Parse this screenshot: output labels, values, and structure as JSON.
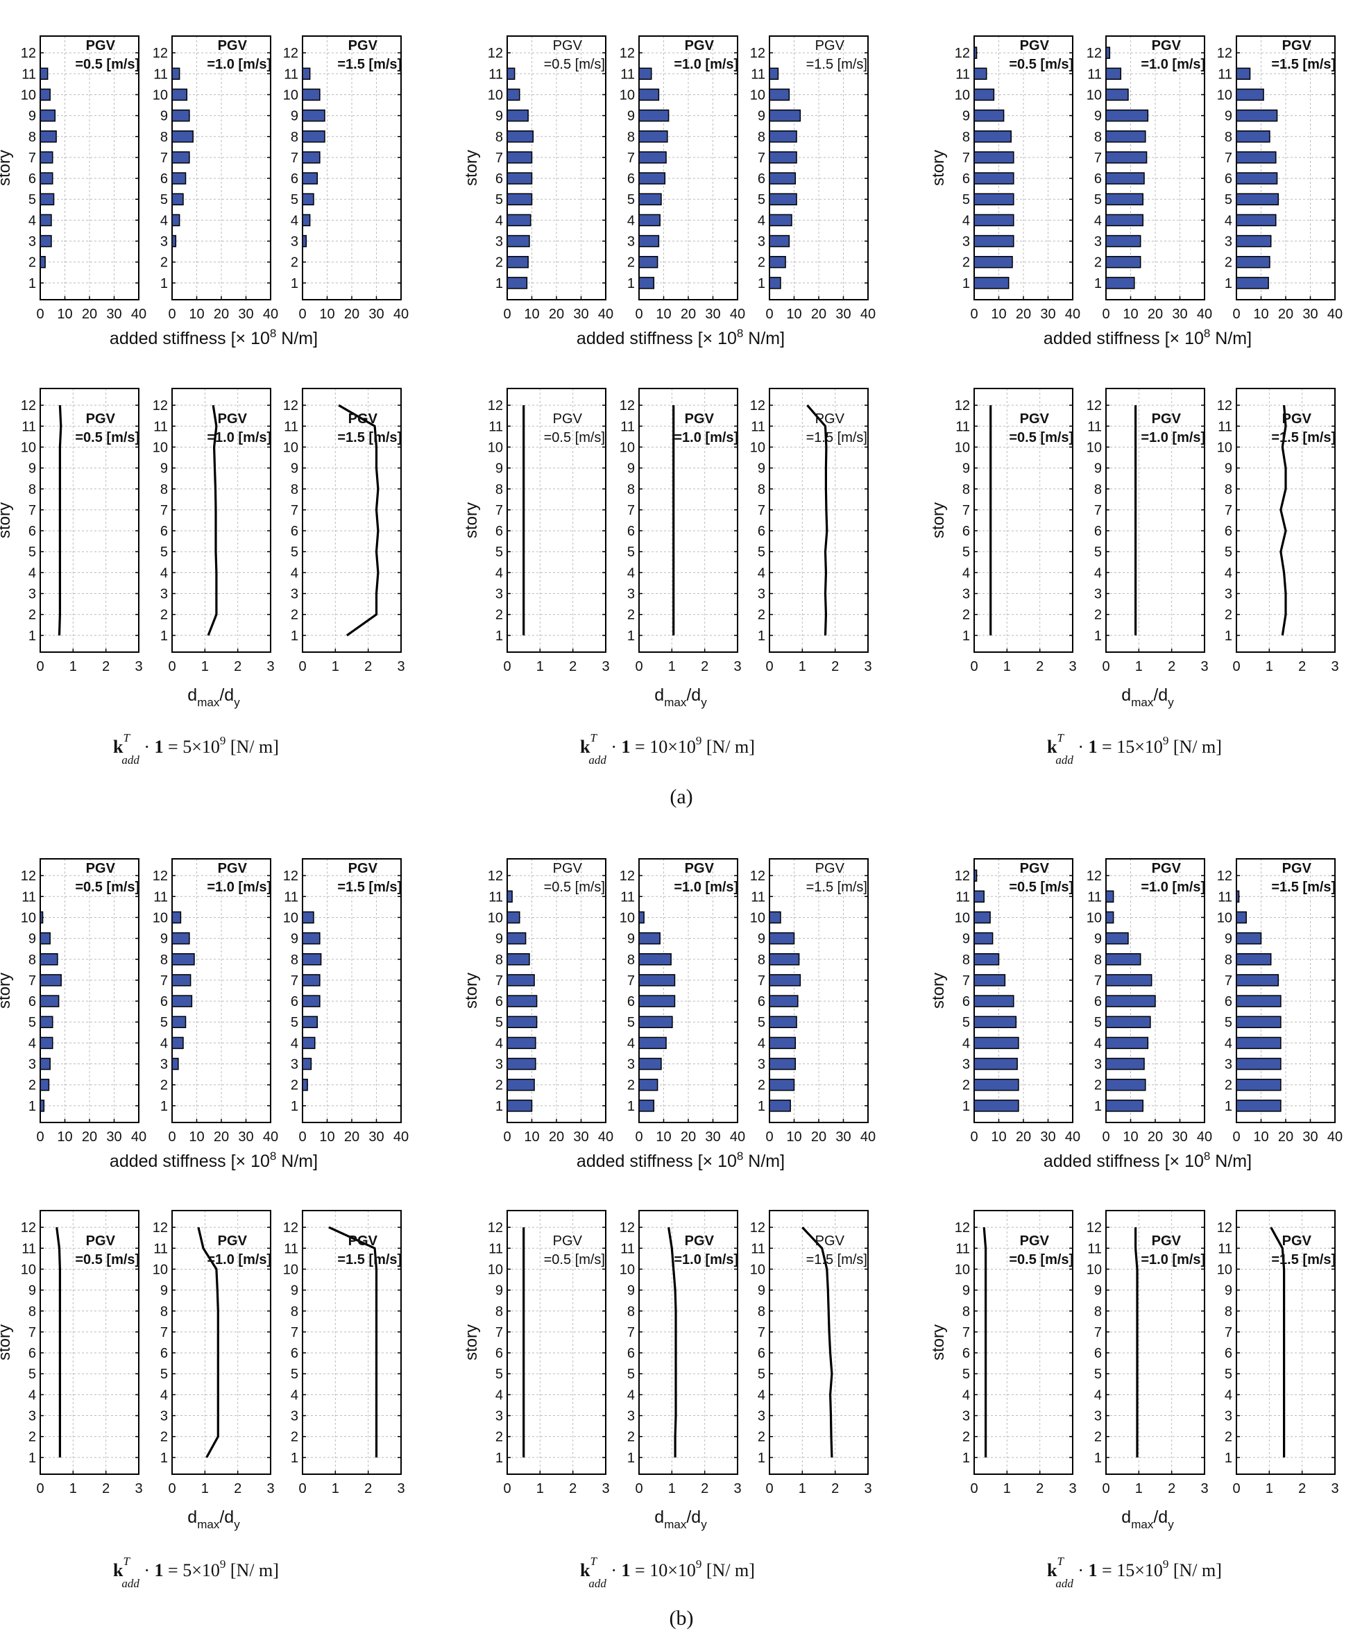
{
  "labels": {
    "story": "story",
    "stiff_xlabel": "added stiffness [× 10",
    "stiff_exp": "8",
    "stiff_unit": " N/m]",
    "dmax_main": "d",
    "dmax_sub": "max",
    "dy_main": "/d",
    "dy_sub": "y",
    "pgv": "PGV"
  },
  "pgv_values": [
    "=0.5 [m/s]",
    "=1.0 [m/s]",
    "=1.5 [m/s]"
  ],
  "chart_data": {
    "type": "bar",
    "y_categories": [
      1,
      2,
      3,
      4,
      5,
      6,
      7,
      8,
      9,
      10,
      11,
      12
    ],
    "stiffness_xticks": [
      0,
      10,
      20,
      30,
      40
    ],
    "stiffness_xlim": [
      0,
      40
    ],
    "dmax_xticks": [
      0,
      1,
      2,
      3
    ],
    "dmax_xlim": [
      0,
      3
    ],
    "grid": true,
    "parts": [
      {
        "label": "(a)",
        "groups": [
          {
            "caption": {
              "sum": "5",
              "times": "×10",
              "exp": "9"
            },
            "stiffness": [
              [
                0,
                2,
                4.5,
                4.5,
                5.5,
                5,
                5,
                6.5,
                6,
                4,
                3,
                0
              ],
              [
                0,
                0,
                1.5,
                3,
                4.5,
                5.5,
                7,
                8.5,
                7,
                6,
                3,
                0
              ],
              [
                0,
                0,
                1.5,
                3,
                4.5,
                6,
                7,
                9,
                9,
                7,
                3,
                0
              ]
            ],
            "dmax": [
              [
                0.58,
                0.6,
                0.6,
                0.6,
                0.6,
                0.6,
                0.6,
                0.6,
                0.6,
                0.6,
                0.63,
                0.6
              ],
              [
                1.1,
                1.35,
                1.35,
                1.35,
                1.33,
                1.33,
                1.33,
                1.32,
                1.3,
                1.28,
                1.35,
                1.25
              ],
              [
                1.35,
                2.25,
                2.25,
                2.3,
                2.25,
                2.3,
                2.25,
                2.3,
                2.25,
                2.25,
                2.2,
                1.1
              ]
            ],
            "pgv_bold": [
              true,
              true,
              true
            ]
          },
          {
            "caption": {
              "sum": "10",
              "times": "×10",
              "exp": "9"
            },
            "stiffness": [
              [
                8,
                8.5,
                9,
                9.5,
                10,
                10,
                10,
                10.5,
                8.5,
                5,
                3,
                0
              ],
              [
                6,
                7.5,
                8,
                8.5,
                9,
                10.5,
                11,
                11.5,
                12,
                8,
                5,
                0
              ],
              [
                4.5,
                6.5,
                8,
                9,
                11,
                10.5,
                11,
                11,
                12.5,
                8,
                3.5,
                0
              ]
            ],
            "dmax": [
              [
                0.5,
                0.5,
                0.5,
                0.5,
                0.5,
                0.5,
                0.5,
                0.5,
                0.5,
                0.5,
                0.5,
                0.5
              ],
              [
                1.05,
                1.05,
                1.05,
                1.05,
                1.05,
                1.05,
                1.05,
                1.05,
                1.05,
                1.05,
                1.05,
                1.05
              ],
              [
                1.7,
                1.72,
                1.7,
                1.72,
                1.7,
                1.75,
                1.73,
                1.72,
                1.72,
                1.73,
                1.7,
                1.15
              ]
            ],
            "pgv_bold": [
              false,
              true,
              false
            ]
          },
          {
            "caption": {
              "sum": "15",
              "times": "×10",
              "exp": "9"
            },
            "stiffness": [
              [
                14,
                15.5,
                16,
                16,
                16,
                16,
                16,
                15,
                12,
                8,
                5,
                1
              ],
              [
                11.5,
                14,
                14,
                15,
                15,
                15.5,
                16.5,
                16,
                17,
                9,
                6,
                1.5
              ],
              [
                13,
                13.5,
                14,
                16,
                17,
                16.5,
                16,
                13.5,
                16.5,
                11,
                5.5,
                0
              ]
            ],
            "dmax": [
              [
                0.5,
                0.5,
                0.5,
                0.5,
                0.5,
                0.5,
                0.5,
                0.5,
                0.5,
                0.5,
                0.5,
                0.5
              ],
              [
                0.9,
                0.9,
                0.9,
                0.9,
                0.9,
                0.9,
                0.9,
                0.9,
                0.9,
                0.9,
                0.9,
                0.9
              ],
              [
                1.4,
                1.5,
                1.5,
                1.45,
                1.35,
                1.5,
                1.35,
                1.5,
                1.5,
                1.4,
                1.5,
                1.45
              ]
            ],
            "pgv_bold": [
              true,
              true,
              true
            ]
          }
        ]
      },
      {
        "label": "(b)",
        "groups": [
          {
            "caption": {
              "sum": "5",
              "times": "×10",
              "exp": "9"
            },
            "stiffness": [
              [
                1.5,
                3.5,
                4,
                5,
                5,
                7.5,
                8.5,
                7,
                4,
                1,
                0,
                0
              ],
              [
                0,
                0,
                2.5,
                4.5,
                5.5,
                8,
                7.5,
                9,
                7,
                3.5,
                0,
                0
              ],
              [
                0,
                2,
                3.5,
                5,
                6,
                7,
                7,
                7.5,
                7,
                4.5,
                0,
                0
              ]
            ],
            "dmax": [
              [
                0.6,
                0.6,
                0.6,
                0.6,
                0.6,
                0.6,
                0.6,
                0.6,
                0.6,
                0.6,
                0.58,
                0.5
              ],
              [
                1.05,
                1.4,
                1.4,
                1.4,
                1.4,
                1.4,
                1.4,
                1.4,
                1.38,
                1.35,
                0.95,
                0.8
              ],
              [
                2.25,
                2.25,
                2.25,
                2.25,
                2.25,
                2.25,
                2.25,
                2.25,
                2.25,
                2.25,
                2.2,
                0.8
              ]
            ],
            "pgv_bold": [
              true,
              true,
              true
            ]
          },
          {
            "caption": {
              "sum": "10",
              "times": "×10",
              "exp": "9"
            },
            "stiffness": [
              [
                10,
                11,
                11.5,
                11.5,
                12,
                12,
                11,
                9,
                7.5,
                5,
                2,
                0
              ],
              [
                6,
                7.5,
                9,
                11,
                13.5,
                14.5,
                14.5,
                13,
                8.5,
                2,
                0,
                0
              ],
              [
                8.5,
                10,
                10.5,
                10.5,
                11,
                11.5,
                12.5,
                12,
                10,
                4.5,
                0,
                0
              ]
            ],
            "dmax": [
              [
                0.5,
                0.5,
                0.5,
                0.5,
                0.5,
                0.5,
                0.5,
                0.5,
                0.5,
                0.5,
                0.5,
                0.5
              ],
              [
                1.1,
                1.1,
                1.12,
                1.12,
                1.12,
                1.12,
                1.12,
                1.12,
                1.1,
                1.05,
                1.0,
                0.9
              ],
              [
                1.9,
                1.88,
                1.87,
                1.85,
                1.9,
                1.85,
                1.82,
                1.8,
                1.78,
                1.75,
                1.6,
                1.0
              ]
            ],
            "pgv_bold": [
              false,
              true,
              false
            ]
          },
          {
            "caption": {
              "sum": "15",
              "times": "×10",
              "exp": "9"
            },
            "stiffness": [
              [
                18,
                18,
                17.5,
                18,
                17,
                16,
                12.5,
                10,
                7.5,
                6.5,
                4,
                1
              ],
              [
                15,
                16,
                15.5,
                17,
                18,
                20,
                18.5,
                14,
                9,
                3,
                3,
                0
              ],
              [
                18,
                18,
                18,
                18,
                18,
                18,
                17,
                14,
                10,
                4,
                1,
                0
              ]
            ],
            "dmax": [
              [
                0.35,
                0.35,
                0.35,
                0.35,
                0.35,
                0.35,
                0.35,
                0.35,
                0.35,
                0.35,
                0.35,
                0.3
              ],
              [
                0.95,
                0.95,
                0.95,
                0.95,
                0.95,
                0.95,
                0.95,
                0.95,
                0.95,
                0.95,
                0.9,
                0.9
              ],
              [
                1.45,
                1.45,
                1.45,
                1.45,
                1.45,
                1.45,
                1.45,
                1.45,
                1.45,
                1.45,
                1.4,
                1.05
              ]
            ],
            "pgv_bold": [
              true,
              true,
              true
            ]
          }
        ]
      }
    ]
  }
}
